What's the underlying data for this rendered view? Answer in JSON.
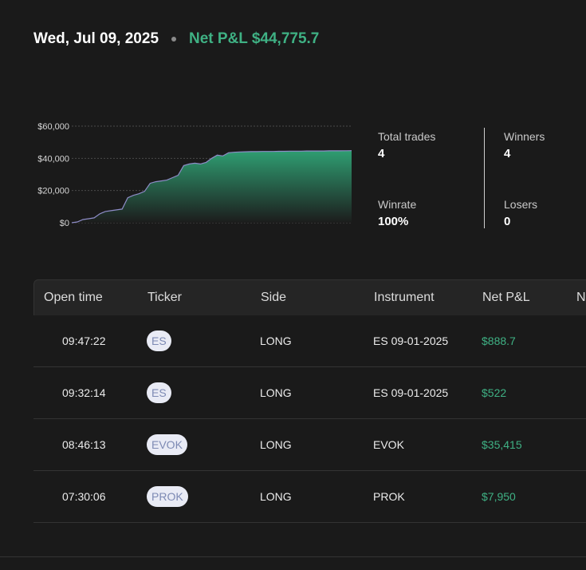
{
  "header": {
    "date": "Wed, Jul 09, 2025",
    "net_pnl": "Net P&L $44,775.7"
  },
  "chart_data": {
    "type": "area",
    "title": "",
    "xlabel": "",
    "ylabel": "",
    "ylim": [
      0,
      60000
    ],
    "y_ticks": [
      "$60,000",
      "$40,000",
      "$20,000",
      "$0"
    ],
    "grid": true,
    "x": [
      0,
      1,
      2,
      3,
      4,
      5,
      6,
      7,
      8,
      9,
      10,
      11,
      12,
      13,
      14,
      15,
      16,
      17,
      18,
      19,
      20,
      21,
      22,
      23,
      24,
      25,
      26,
      27,
      28,
      29,
      30,
      31,
      32,
      33,
      34,
      35,
      36,
      37,
      38,
      39,
      40,
      41,
      42,
      43,
      44,
      45,
      46,
      47,
      48,
      49,
      50
    ],
    "values": [
      0,
      500,
      2000,
      2500,
      3000,
      5500,
      7000,
      7500,
      8000,
      8500,
      15500,
      17000,
      18000,
      19500,
      24500,
      25500,
      26000,
      26500,
      28000,
      29500,
      35500,
      36500,
      37000,
      36500,
      37500,
      40000,
      42000,
      41500,
      43500,
      43800,
      44000,
      44100,
      44200,
      44200,
      44300,
      44300,
      44300,
      44400,
      44400,
      44500,
      44500,
      44500,
      44600,
      44600,
      44600,
      44600,
      44700,
      44700,
      44700,
      44750,
      44775.7
    ],
    "colors": {
      "line": "#8e8cc7",
      "fill_top": "#2f9e72",
      "fill_bottom": "#1c1c1c"
    }
  },
  "stats": {
    "total_trades_label": "Total trades",
    "total_trades": "4",
    "winners_label": "Winners",
    "winners": "4",
    "winrate_label": "Winrate",
    "winrate": "100%",
    "losers_label": "Losers",
    "losers": "0"
  },
  "table": {
    "headers": [
      "Open time",
      "Ticker",
      "Side",
      "Instrument",
      "Net P&L",
      "N"
    ],
    "rows": [
      {
        "time": "09:47:22",
        "ticker": "ES",
        "side": "LONG",
        "instrument": "ES 09-01-2025",
        "pnl": "$888.7"
      },
      {
        "time": "09:32:14",
        "ticker": "ES",
        "side": "LONG",
        "instrument": "ES 09-01-2025",
        "pnl": "$522"
      },
      {
        "time": "08:46:13",
        "ticker": "EVOK",
        "side": "LONG",
        "instrument": "EVOK",
        "pnl": "$35,415"
      },
      {
        "time": "07:30:06",
        "ticker": "PROK",
        "side": "LONG",
        "instrument": "PROK",
        "pnl": "$7,950"
      }
    ]
  },
  "colors": {
    "positive": "#3fb184",
    "background": "#1a1a1a",
    "badge_bg": "#e9ebf5",
    "badge_text": "#7d8ab4"
  }
}
